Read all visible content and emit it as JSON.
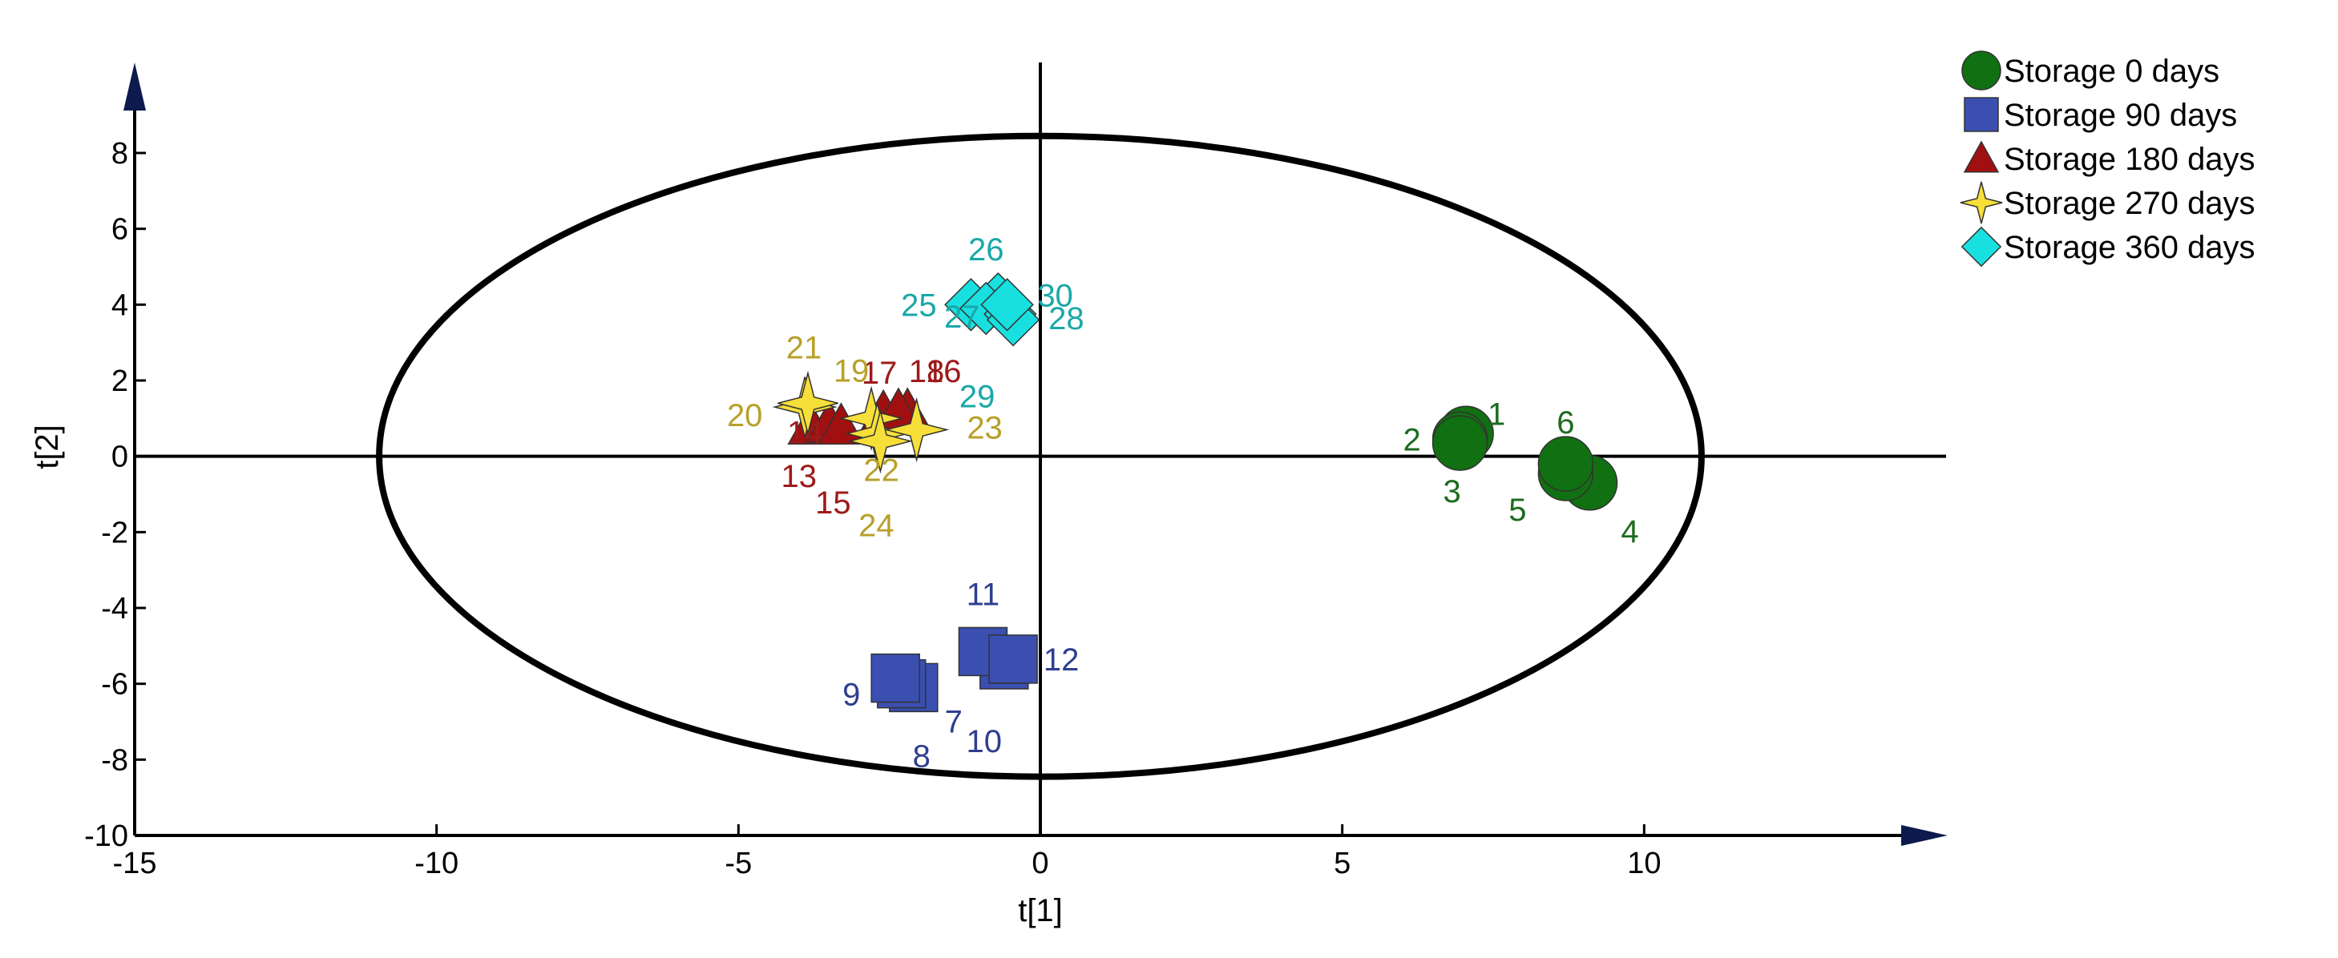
{
  "chart_data": {
    "type": "scatter",
    "xlabel": "t[1]",
    "ylabel": "t[2]",
    "xlim": [
      -15,
      15
    ],
    "ylim": [
      -10,
      9.5
    ],
    "xticks": [
      -15,
      -10,
      -5,
      0,
      5,
      10
    ],
    "yticks": [
      -10,
      -8,
      -6,
      -4,
      -2,
      0,
      2,
      4,
      6,
      8
    ],
    "ellipse": {
      "cx": 0,
      "cy": 0,
      "rx": 10.95,
      "ry": 8.45
    },
    "legend_position": "top-right",
    "series": [
      {
        "name": "Storage 0 days",
        "marker": "circle",
        "color": "#117011",
        "label_color": "#1e6b1e",
        "points": [
          {
            "id": "1",
            "x": 7.05,
            "y": 0.6
          },
          {
            "id": "2",
            "x": 6.95,
            "y": 0.45
          },
          {
            "id": "3",
            "x": 6.95,
            "y": 0.35
          },
          {
            "id": "4",
            "x": 9.1,
            "y": -0.7
          },
          {
            "id": "5",
            "x": 8.7,
            "y": -0.45
          },
          {
            "id": "6",
            "x": 8.7,
            "y": -0.2
          }
        ]
      },
      {
        "name": "Storage 90 days",
        "marker": "square",
        "color": "#3a4fb0",
        "label_color": "#2f3e8f",
        "points": [
          {
            "id": "7",
            "x": -2.1,
            "y": -6.1
          },
          {
            "id": "8",
            "x": -2.3,
            "y": -6.0
          },
          {
            "id": "9",
            "x": -2.4,
            "y": -5.85
          },
          {
            "id": "10",
            "x": -0.6,
            "y": -5.5
          },
          {
            "id": "11",
            "x": -0.95,
            "y": -5.15
          },
          {
            "id": "12",
            "x": -0.45,
            "y": -5.35
          }
        ]
      },
      {
        "name": "Storage 180 days",
        "marker": "triangle",
        "color": "#a01010",
        "label_color": "#9e1a1a",
        "points": [
          {
            "id": "13",
            "x": -3.8,
            "y": 0.8
          },
          {
            "id": "14",
            "x": -3.5,
            "y": 0.85
          },
          {
            "id": "15",
            "x": -3.3,
            "y": 0.8
          },
          {
            "id": "16",
            "x": -2.2,
            "y": 1.2
          },
          {
            "id": "17",
            "x": -2.6,
            "y": 1.15
          },
          {
            "id": "18",
            "x": -2.35,
            "y": 1.2
          }
        ]
      },
      {
        "name": "Storage 270 days",
        "marker": "star",
        "color": "#f7df3a",
        "label_color": "#b8a02a",
        "points": [
          {
            "id": "19",
            "x": -2.8,
            "y": 1.0
          },
          {
            "id": "20",
            "x": -3.9,
            "y": 1.3
          },
          {
            "id": "21",
            "x": -3.85,
            "y": 1.4
          },
          {
            "id": "22",
            "x": -2.7,
            "y": 0.6
          },
          {
            "id": "23",
            "x": -2.05,
            "y": 0.7
          },
          {
            "id": "24",
            "x": -2.65,
            "y": 0.4
          }
        ]
      },
      {
        "name": "Storage 360 days",
        "marker": "diamond",
        "color": "#19e0e0",
        "label_color": "#1aa8a8",
        "points": [
          {
            "id": "25",
            "x": -1.15,
            "y": 4.0
          },
          {
            "id": "26",
            "x": -0.7,
            "y": 4.15
          },
          {
            "id": "27",
            "x": -0.9,
            "y": 3.9
          },
          {
            "id": "28",
            "x": -0.5,
            "y": 3.75
          },
          {
            "id": "29",
            "x": -0.45,
            "y": 3.6
          },
          {
            "id": "30",
            "x": -0.55,
            "y": 4.0
          }
        ]
      }
    ]
  }
}
